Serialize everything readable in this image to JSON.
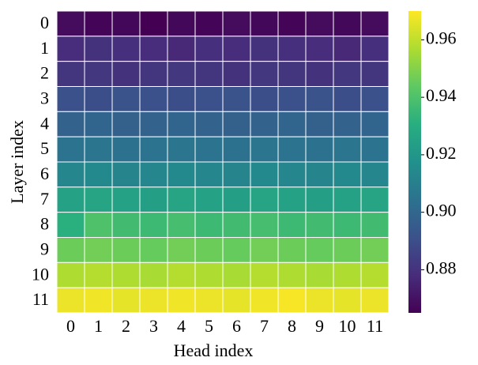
{
  "chart_data": {
    "type": "heatmap",
    "x_label": "Head index",
    "y_label": "Layer index",
    "x": [
      0,
      1,
      2,
      3,
      4,
      5,
      6,
      7,
      8,
      9,
      10,
      11
    ],
    "y": [
      0,
      1,
      2,
      3,
      4,
      5,
      6,
      7,
      8,
      9,
      10,
      11
    ],
    "values": [
      [
        0.868,
        0.866,
        0.867,
        0.865,
        0.867,
        0.866,
        0.868,
        0.867,
        0.866,
        0.868,
        0.867,
        0.868
      ],
      [
        0.878,
        0.88,
        0.879,
        0.878,
        0.877,
        0.879,
        0.878,
        0.88,
        0.879,
        0.878,
        0.877,
        0.879
      ],
      [
        0.881,
        0.882,
        0.88,
        0.881,
        0.882,
        0.881,
        0.88,
        0.882,
        0.881,
        0.88,
        0.882,
        0.881
      ],
      [
        0.891,
        0.89,
        0.892,
        0.891,
        0.89,
        0.891,
        0.892,
        0.89,
        0.891,
        0.892,
        0.89,
        0.891
      ],
      [
        0.898,
        0.899,
        0.897,
        0.898,
        0.899,
        0.898,
        0.897,
        0.898,
        0.899,
        0.897,
        0.898,
        0.899
      ],
      [
        0.905,
        0.906,
        0.904,
        0.905,
        0.906,
        0.905,
        0.904,
        0.906,
        0.905,
        0.904,
        0.906,
        0.905
      ],
      [
        0.913,
        0.914,
        0.912,
        0.913,
        0.914,
        0.913,
        0.912,
        0.914,
        0.913,
        0.912,
        0.914,
        0.913
      ],
      [
        0.925,
        0.926,
        0.925,
        0.924,
        0.926,
        0.925,
        0.924,
        0.926,
        0.925,
        0.924,
        0.925,
        0.926
      ],
      [
        0.931,
        0.94,
        0.937,
        0.936,
        0.938,
        0.936,
        0.937,
        0.938,
        0.936,
        0.937,
        0.936,
        0.937
      ],
      [
        0.946,
        0.947,
        0.946,
        0.945,
        0.947,
        0.946,
        0.945,
        0.947,
        0.946,
        0.945,
        0.946,
        0.947
      ],
      [
        0.957,
        0.958,
        0.957,
        0.956,
        0.958,
        0.957,
        0.956,
        0.958,
        0.957,
        0.956,
        0.957,
        0.958
      ],
      [
        0.967,
        0.968,
        0.966,
        0.967,
        0.968,
        0.967,
        0.966,
        0.968,
        0.969,
        0.967,
        0.966,
        0.967
      ]
    ],
    "colormap": "viridis",
    "clim": [
      0.865,
      0.97
    ],
    "cticks": [
      0.88,
      {
        "value": 0.9,
        "label": "0.90"
      },
      0.92,
      0.94,
      0.96
    ]
  }
}
